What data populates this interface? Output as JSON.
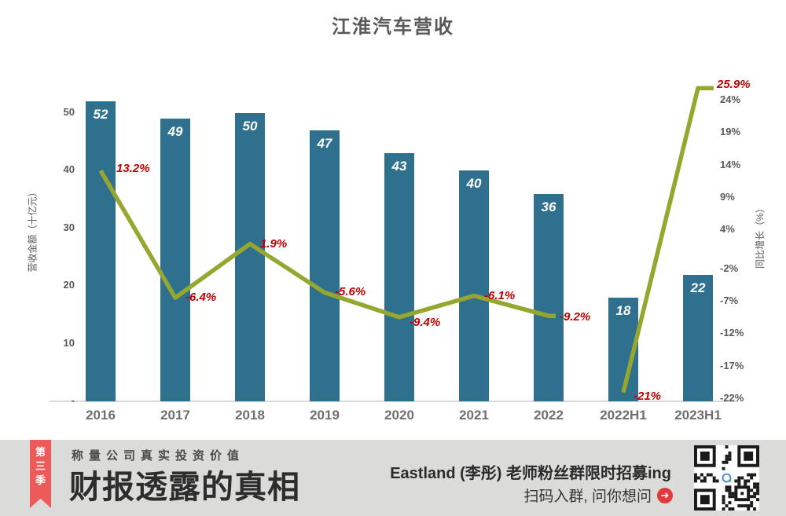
{
  "chart_data": {
    "type": "bar",
    "title": "江淮汽车营收",
    "categories": [
      "2016",
      "2017",
      "2018",
      "2019",
      "2020",
      "2021",
      "2022",
      "2022H1",
      "2023H1"
    ],
    "series": [
      {
        "name": "营收金额",
        "type": "bar",
        "values": [
          52,
          49,
          50,
          47,
          43,
          40,
          36,
          18,
          22
        ],
        "labels": [
          "52",
          "49",
          "50",
          "47",
          "43",
          "40",
          "36",
          "18",
          "22"
        ]
      },
      {
        "name": "同比增长",
        "type": "line",
        "values": [
          13.2,
          -6.4,
          1.9,
          -5.6,
          -9.4,
          -6.1,
          -9.2,
          -21,
          25.9
        ],
        "labels": [
          "13.2%",
          "-6.4%",
          "1.9%",
          "-5.6%",
          "-9.4%",
          "-6.1%",
          "-9.2%",
          "-21%",
          "25.9%"
        ],
        "segments": [
          [
            0,
            1,
            2,
            3,
            4,
            5,
            6
          ],
          [
            7,
            8
          ]
        ]
      }
    ],
    "left_axis": {
      "label": "营收金额（十亿元）",
      "ticks": [
        {
          "label": "50",
          "value": 50
        },
        {
          "label": "40",
          "value": 40
        },
        {
          "label": "30",
          "value": 30
        },
        {
          "label": "20",
          "value": 20
        },
        {
          "label": "10",
          "value": 10
        },
        {
          "label": "-",
          "value": 0
        }
      ]
    },
    "right_axis": {
      "label": "同比增长（%）",
      "ticks": [
        {
          "label": "24%",
          "value": 24
        },
        {
          "label": "19%",
          "value": 19
        },
        {
          "label": "14%",
          "value": 14
        },
        {
          "label": "9%",
          "value": 9
        },
        {
          "label": "4%",
          "value": 4
        },
        {
          "label": "-2%",
          "value": -2
        },
        {
          "label": "-7%",
          "value": -7
        },
        {
          "label": "-12%",
          "value": -12
        },
        {
          "label": "-17%",
          "value": -17
        },
        {
          "label": "-22%",
          "value": -22
        }
      ]
    },
    "grid": false,
    "legend": "none",
    "colors": {
      "bar": "#30708f",
      "line": "#96a72f",
      "annotation": "#c00000"
    }
  },
  "banner": {
    "season_ribbon": [
      "第",
      "三",
      "季"
    ],
    "tagline": "称量公司真实投资价值",
    "main_title": "财报透露的真相",
    "recruit_text": "Eastland (李彤) 老师粉丝群限时招募ing",
    "scan_text": "扫码入群, 问你想问",
    "arrow_glyph": "➜",
    "colors": {
      "ribbon": "#ec5b59",
      "background": "#dbdbd9"
    }
  }
}
